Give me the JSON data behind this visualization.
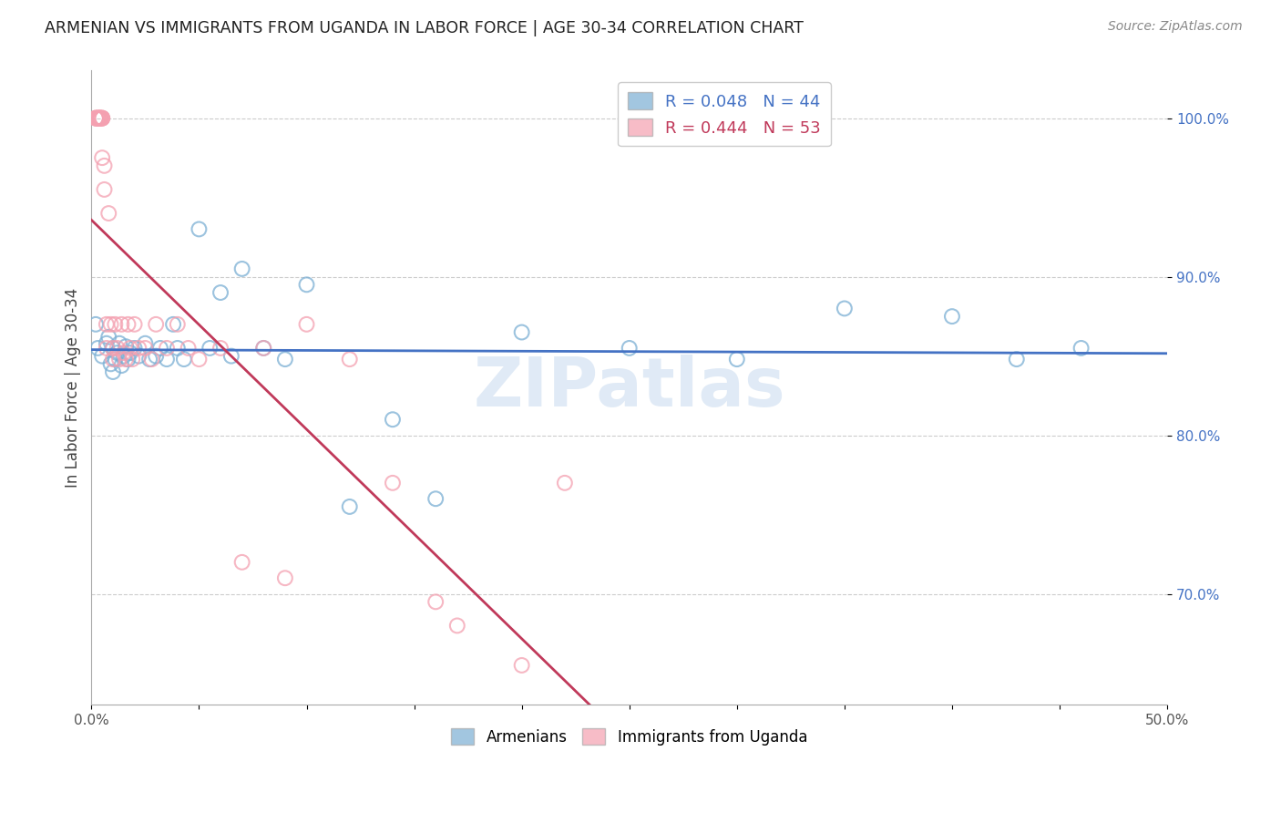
{
  "title": "ARMENIAN VS IMMIGRANTS FROM UGANDA IN LABOR FORCE | AGE 30-34 CORRELATION CHART",
  "source": "Source: ZipAtlas.com",
  "ylabel": "In Labor Force | Age 30-34",
  "xlim": [
    0.0,
    0.5
  ],
  "ylim": [
    0.63,
    1.03
  ],
  "xticks": [
    0.0,
    0.05,
    0.1,
    0.15,
    0.2,
    0.25,
    0.3,
    0.35,
    0.4,
    0.45,
    0.5
  ],
  "xticklabels": [
    "0.0%",
    "",
    "",
    "",
    "",
    "",
    "",
    "",
    "",
    "",
    "50.0%"
  ],
  "yticks": [
    0.7,
    0.8,
    0.9,
    1.0
  ],
  "yticklabels": [
    "70.0%",
    "80.0%",
    "90.0%",
    "100.0%"
  ],
  "watermark": "ZIPatlas",
  "legend_r_blue": "R = 0.048",
  "legend_n_blue": "N = 44",
  "legend_r_pink": "R = 0.444",
  "legend_n_pink": "N = 53",
  "blue_color": "#7bafd4",
  "pink_color": "#f4a0b0",
  "blue_line_color": "#4472C4",
  "pink_line_color": "#C0395A",
  "armenians_x": [
    0.002,
    0.003,
    0.005,
    0.007,
    0.008,
    0.009,
    0.01,
    0.01,
    0.011,
    0.012,
    0.013,
    0.014,
    0.015,
    0.016,
    0.017,
    0.018,
    0.02,
    0.022,
    0.025,
    0.027,
    0.03,
    0.032,
    0.035,
    0.038,
    0.04,
    0.043,
    0.05,
    0.055,
    0.06,
    0.065,
    0.07,
    0.08,
    0.09,
    0.1,
    0.12,
    0.14,
    0.16,
    0.2,
    0.25,
    0.3,
    0.35,
    0.4,
    0.43,
    0.46
  ],
  "armenians_y": [
    0.87,
    0.855,
    0.85,
    0.858,
    0.862,
    0.845,
    0.84,
    0.855,
    0.848,
    0.852,
    0.858,
    0.844,
    0.85,
    0.856,
    0.848,
    0.852,
    0.855,
    0.85,
    0.858,
    0.848,
    0.85,
    0.855,
    0.848,
    0.87,
    0.855,
    0.848,
    0.93,
    0.855,
    0.89,
    0.85,
    0.905,
    0.855,
    0.848,
    0.895,
    0.755,
    0.81,
    0.76,
    0.865,
    0.855,
    0.848,
    0.88,
    0.875,
    0.848,
    0.855
  ],
  "uganda_x": [
    0.002,
    0.002,
    0.002,
    0.003,
    0.003,
    0.003,
    0.003,
    0.004,
    0.004,
    0.004,
    0.004,
    0.004,
    0.005,
    0.005,
    0.005,
    0.005,
    0.006,
    0.006,
    0.007,
    0.007,
    0.008,
    0.009,
    0.01,
    0.01,
    0.011,
    0.012,
    0.013,
    0.014,
    0.015,
    0.016,
    0.017,
    0.018,
    0.019,
    0.02,
    0.022,
    0.025,
    0.028,
    0.03,
    0.035,
    0.04,
    0.045,
    0.05,
    0.06,
    0.07,
    0.08,
    0.09,
    0.1,
    0.12,
    0.14,
    0.16,
    0.17,
    0.2,
    0.22
  ],
  "uganda_y": [
    1.0,
    1.0,
    1.0,
    1.0,
    1.0,
    1.0,
    1.0,
    1.0,
    1.0,
    1.0,
    1.0,
    1.0,
    1.0,
    1.0,
    1.0,
    0.975,
    0.97,
    0.955,
    0.87,
    0.855,
    0.94,
    0.87,
    0.855,
    0.848,
    0.87,
    0.855,
    0.848,
    0.87,
    0.852,
    0.848,
    0.87,
    0.855,
    0.848,
    0.87,
    0.855,
    0.855,
    0.848,
    0.87,
    0.855,
    0.87,
    0.855,
    0.848,
    0.855,
    0.72,
    0.855,
    0.71,
    0.87,
    0.848,
    0.77,
    0.695,
    0.68,
    0.655,
    0.77
  ]
}
